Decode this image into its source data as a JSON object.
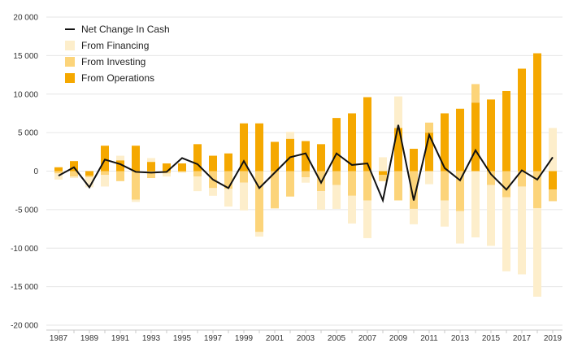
{
  "chart_data": {
    "type": "bar",
    "stacking": "diverging",
    "x": [
      1987,
      1988,
      1989,
      1990,
      1991,
      1992,
      1993,
      1994,
      1995,
      1996,
      1997,
      1998,
      1999,
      2000,
      2001,
      2002,
      2003,
      2004,
      2005,
      2006,
      2007,
      2008,
      2009,
      2010,
      2011,
      2012,
      2013,
      2014,
      2015,
      2016,
      2017,
      2018,
      2019
    ],
    "x_tick_labels": [
      "1987",
      "1989",
      "1991",
      "1993",
      "1995",
      "1997",
      "1999",
      "2001",
      "2003",
      "2005",
      "2007",
      "2009",
      "2011",
      "2013",
      "2015",
      "2017",
      "2019"
    ],
    "y_tick_labels": [
      "20 000",
      "15 000",
      "10 000",
      "5 000",
      "0",
      "-5 000",
      "-10 000",
      "-15 000",
      "-20 000"
    ],
    "ylim": [
      -20000,
      20000
    ],
    "y_ticks": [
      20000,
      15000,
      10000,
      5000,
      0,
      -5000,
      -10000,
      -15000,
      -20000
    ],
    "grid": true,
    "legend_position": "top-left",
    "series": [
      {
        "name": "From Operations",
        "kind": "bar",
        "color": "#f5a800",
        "values": [
          500,
          1300,
          -600,
          3300,
          1400,
          3300,
          1200,
          1000,
          1000,
          3500,
          2000,
          2300,
          6200,
          6200,
          3800,
          4200,
          3900,
          3500,
          6900,
          7500,
          9600,
          -500,
          5600,
          2900,
          5000,
          7500,
          8100,
          8900,
          9300,
          10400,
          13300,
          15300,
          -2400
        ]
      },
      {
        "name": "From Investing",
        "kind": "bar",
        "color": "#fcd47a",
        "values": [
          -300,
          -700,
          -200,
          -500,
          -1300,
          -3700,
          -900,
          -300,
          -100,
          -700,
          -2200,
          -2300,
          -1500,
          -7900,
          -4800,
          -3300,
          -800,
          -2600,
          -1800,
          -3200,
          -3800,
          -800,
          -3800,
          -4900,
          1300,
          -3800,
          -5200,
          2400,
          -1800,
          -3400,
          -2000,
          -4800,
          -1500
        ]
      },
      {
        "name": "From Financing",
        "kind": "bar",
        "color": "#fdeecb",
        "values": [
          -800,
          -200,
          -1300,
          -1500,
          600,
          -300,
          500,
          -400,
          -100,
          -1900,
          -1000,
          -2300,
          -3600,
          -600,
          -100,
          900,
          -700,
          -2400,
          -3100,
          -3600,
          -4900,
          1800,
          4100,
          -2000,
          -1700,
          -3400,
          -4200,
          -8600,
          -7900,
          -9600,
          -11400,
          -11500,
          5600
        ]
      },
      {
        "name": "Net Change In Cash",
        "kind": "line",
        "color": "#111111",
        "values": [
          -600,
          500,
          -2100,
          1500,
          900,
          -100,
          -200,
          -100,
          1700,
          900,
          -1100,
          -2200,
          1300,
          -2200,
          -200,
          1800,
          2300,
          -1500,
          2300,
          800,
          1000,
          -3800,
          6000,
          -3800,
          4700,
          400,
          -1200,
          2700,
          -400,
          -2400,
          100,
          -1100,
          1800
        ]
      }
    ]
  }
}
